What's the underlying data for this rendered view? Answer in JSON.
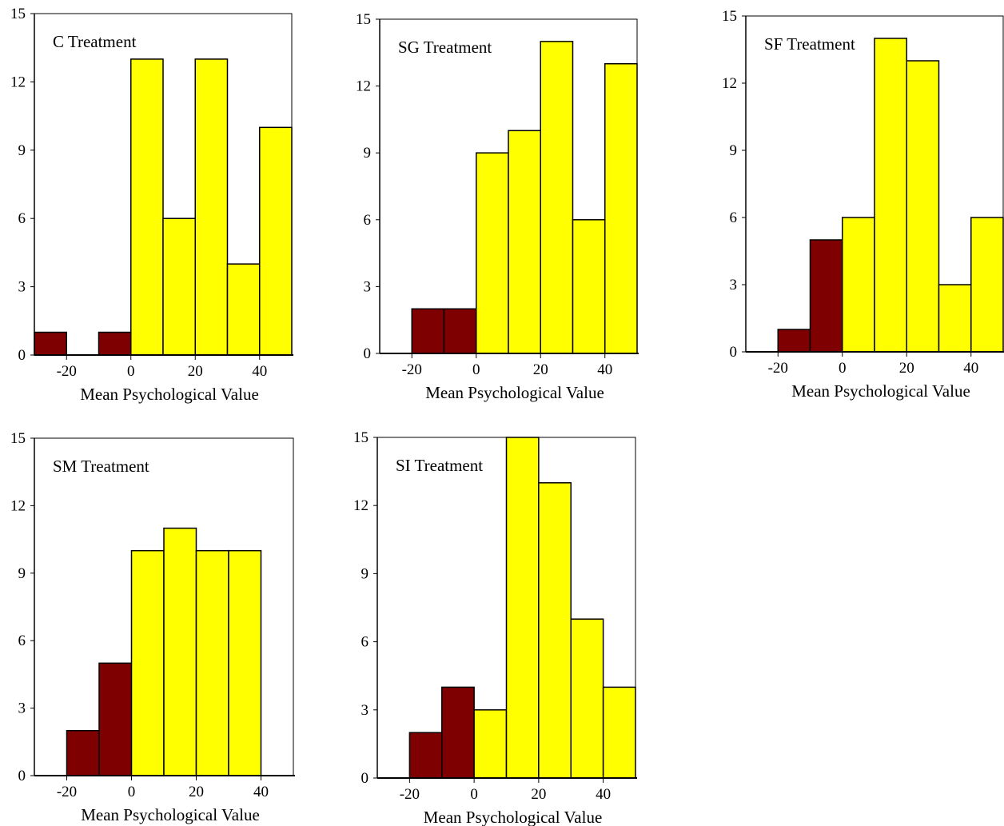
{
  "colors": {
    "negative_bar": "#7f0000",
    "positive_bar": "#ffff00",
    "axis": "#000000",
    "background": "#ffffff"
  },
  "chart_data": [
    {
      "type": "bar",
      "title": "C  Treatment",
      "xlabel": "Mean Psychological Value",
      "ylabel": "",
      "bins": [
        [
          -30,
          -20
        ],
        [
          -20,
          -10
        ],
        [
          -10,
          0
        ],
        [
          0,
          10
        ],
        [
          10,
          20
        ],
        [
          20,
          30
        ],
        [
          30,
          40
        ],
        [
          40,
          50
        ]
      ],
      "values": [
        1,
        0,
        1,
        13,
        6,
        13,
        4,
        10
      ],
      "xticks": [
        "-20",
        "0",
        "20",
        "40"
      ],
      "xtick_values": [
        -20,
        0,
        20,
        40
      ],
      "yticks": [
        "0",
        "3",
        "6",
        "9",
        "12",
        "15"
      ],
      "ylim": [
        0,
        15
      ],
      "xlim": [
        -30,
        50
      ]
    },
    {
      "type": "bar",
      "title": "SG Treatment",
      "xlabel": "Mean Psychological Value",
      "ylabel": "",
      "bins": [
        [
          -20,
          -10
        ],
        [
          -10,
          0
        ],
        [
          0,
          10
        ],
        [
          10,
          20
        ],
        [
          20,
          30
        ],
        [
          30,
          40
        ],
        [
          40,
          50
        ]
      ],
      "values": [
        2,
        2,
        9,
        10,
        14,
        6,
        13
      ],
      "xticks": [
        "-20",
        "0",
        "20",
        "40"
      ],
      "xtick_values": [
        -20,
        0,
        20,
        40
      ],
      "yticks": [
        "0",
        "3",
        "6",
        "9",
        "12",
        "15"
      ],
      "ylim": [
        0,
        15
      ],
      "xlim": [
        -30,
        50
      ]
    },
    {
      "type": "bar",
      "title": "SF Treatment",
      "xlabel": "Mean Psychological Value",
      "ylabel": "",
      "bins": [
        [
          -20,
          -10
        ],
        [
          -10,
          0
        ],
        [
          0,
          10
        ],
        [
          10,
          20
        ],
        [
          20,
          30
        ],
        [
          30,
          40
        ],
        [
          40,
          50
        ]
      ],
      "values": [
        1,
        5,
        6,
        14,
        13,
        3,
        6
      ],
      "xticks": [
        "-20",
        "0",
        "20",
        "40"
      ],
      "xtick_values": [
        -20,
        0,
        20,
        40
      ],
      "yticks": [
        "0",
        "3",
        "6",
        "9",
        "12",
        "15"
      ],
      "ylim": [
        0,
        15
      ],
      "xlim": [
        -30,
        50
      ]
    },
    {
      "type": "bar",
      "title": "SM Treatment",
      "xlabel": "Mean Psychological Value",
      "ylabel": "",
      "bins": [
        [
          -20,
          -10
        ],
        [
          -10,
          0
        ],
        [
          0,
          10
        ],
        [
          10,
          20
        ],
        [
          20,
          30
        ],
        [
          30,
          40
        ]
      ],
      "values": [
        2,
        5,
        10,
        11,
        10,
        10
      ],
      "xticks": [
        "-20",
        "0",
        "20",
        "40"
      ],
      "xtick_values": [
        -20,
        0,
        20,
        40
      ],
      "yticks": [
        "0",
        "3",
        "6",
        "9",
        "12",
        "15"
      ],
      "ylim": [
        0,
        15
      ],
      "xlim": [
        -30,
        50
      ]
    },
    {
      "type": "bar",
      "title": "SI Treatment",
      "xlabel": "Mean Psychological Value",
      "ylabel": "",
      "bins": [
        [
          -20,
          -10
        ],
        [
          -10,
          0
        ],
        [
          0,
          10
        ],
        [
          10,
          20
        ],
        [
          20,
          30
        ],
        [
          30,
          40
        ],
        [
          40,
          50
        ]
      ],
      "values": [
        2,
        4,
        3,
        15,
        13,
        7,
        4
      ],
      "xticks": [
        "-20",
        "0",
        "20",
        "40"
      ],
      "xtick_values": [
        -20,
        0,
        20,
        40
      ],
      "yticks": [
        "0",
        "3",
        "6",
        "9",
        "12",
        "15"
      ],
      "ylim": [
        0,
        15
      ],
      "xlim": [
        -30,
        50
      ]
    }
  ]
}
